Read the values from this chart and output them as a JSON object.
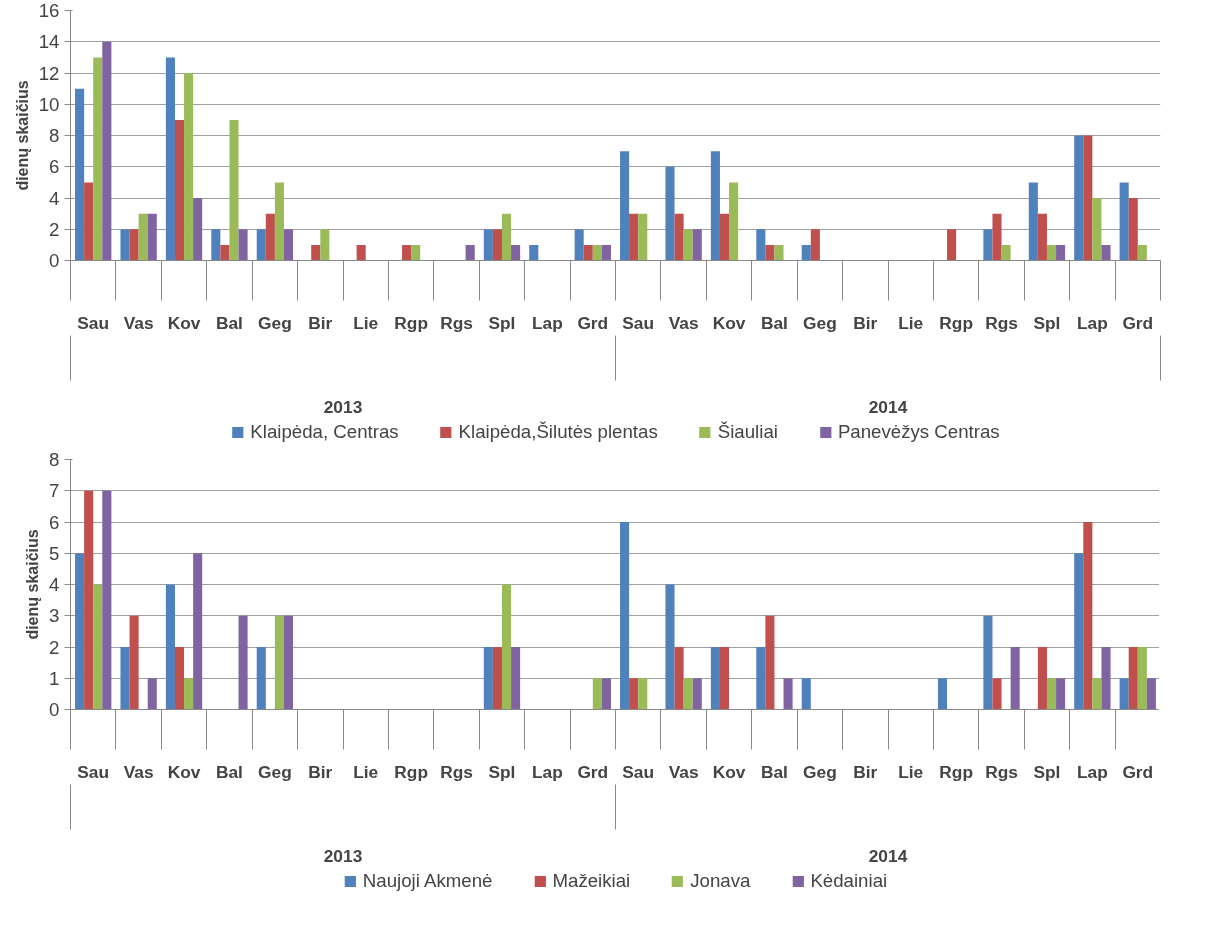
{
  "chart_data": [
    {
      "type": "bar",
      "ylabel": "dienų skaičius",
      "categories": [
        "Sau",
        "Vas",
        "Kov",
        "Bal",
        "Geg",
        "Bir",
        "Lie",
        "Rgp",
        "Rgs",
        "Spl",
        "Lap",
        "Grd",
        "Sau",
        "Vas",
        "Kov",
        "Bal",
        "Geg",
        "Bir",
        "Lie",
        "Rgp",
        "Rgs",
        "Spl",
        "Lap",
        "Grd"
      ],
      "annotations": [
        "2013",
        "2014"
      ],
      "ylim": [
        0,
        16
      ],
      "yticks": [
        0,
        2,
        4,
        6,
        8,
        10,
        12,
        14,
        16
      ],
      "grid": "y",
      "legend": "bottom",
      "series": [
        {
          "name": "Klaipėda, Centras",
          "color": "#4f81bd",
          "values": [
            11,
            2,
            13,
            2,
            2,
            0,
            0,
            0,
            0,
            2,
            1,
            2,
            7,
            6,
            7,
            2,
            1,
            0,
            0,
            0,
            2,
            5,
            8,
            5
          ]
        },
        {
          "name": "Klaipėda,Šilutės plentas",
          "color": "#c0504d",
          "values": [
            5,
            2,
            9,
            1,
            3,
            1,
            1,
            1,
            0,
            2,
            0,
            1,
            3,
            3,
            3,
            1,
            2,
            0,
            0,
            2,
            3,
            3,
            8,
            4
          ]
        },
        {
          "name": "Šiauliai",
          "color": "#9bbb59",
          "values": [
            13,
            3,
            12,
            9,
            5,
            2,
            0,
            1,
            0,
            3,
            0,
            1,
            3,
            2,
            5,
            1,
            0,
            0,
            0,
            0,
            1,
            1,
            4,
            1
          ]
        },
        {
          "name": "Panevėžys Centras",
          "color": "#8064a2",
          "values": [
            14,
            3,
            4,
            2,
            2,
            0,
            0,
            0,
            1,
            1,
            0,
            1,
            0,
            2,
            0,
            0,
            0,
            0,
            0,
            0,
            0,
            1,
            1,
            0
          ]
        }
      ]
    },
    {
      "type": "bar",
      "ylabel": "dienų skaičius",
      "categories": [
        "Sau",
        "Vas",
        "Kov",
        "Bal",
        "Geg",
        "Bir",
        "Lie",
        "Rgp",
        "Rgs",
        "Spl",
        "Lap",
        "Grd",
        "Sau",
        "Vas",
        "Kov",
        "Bal",
        "Geg",
        "Bir",
        "Lie",
        "Rgp",
        "Rgs",
        "Spl",
        "Lap",
        "Grd"
      ],
      "annotations": [
        "2013",
        "2014"
      ],
      "ylim": [
        0,
        8
      ],
      "yticks": [
        0,
        1,
        2,
        3,
        4,
        5,
        6,
        7,
        8
      ],
      "grid": "y",
      "legend": "bottom",
      "series": [
        {
          "name": "Naujoji Akmenė",
          "color": "#4f81bd",
          "values": [
            5,
            2,
            4,
            0,
            2,
            0,
            0,
            0,
            0,
            2,
            0,
            0,
            6,
            4,
            2,
            2,
            1,
            0,
            0,
            1,
            3,
            0,
            5,
            1
          ]
        },
        {
          "name": "Mažeikiai",
          "color": "#c0504d",
          "values": [
            7,
            3,
            2,
            0,
            0,
            0,
            0,
            0,
            0,
            2,
            0,
            0,
            1,
            2,
            2,
            3,
            0,
            0,
            0,
            0,
            1,
            2,
            6,
            2
          ]
        },
        {
          "name": "Jonava",
          "color": "#9bbb59",
          "values": [
            4,
            0,
            1,
            0,
            3,
            0,
            0,
            0,
            0,
            4,
            0,
            1,
            1,
            1,
            0,
            0,
            0,
            0,
            0,
            0,
            0,
            1,
            1,
            2
          ]
        },
        {
          "name": "Kėdainiai",
          "color": "#8064a2",
          "values": [
            7,
            1,
            5,
            3,
            3,
            0,
            0,
            0,
            0,
            2,
            0,
            1,
            0,
            1,
            0,
            1,
            0,
            0,
            0,
            0,
            2,
            1,
            2,
            1
          ]
        }
      ]
    }
  ]
}
